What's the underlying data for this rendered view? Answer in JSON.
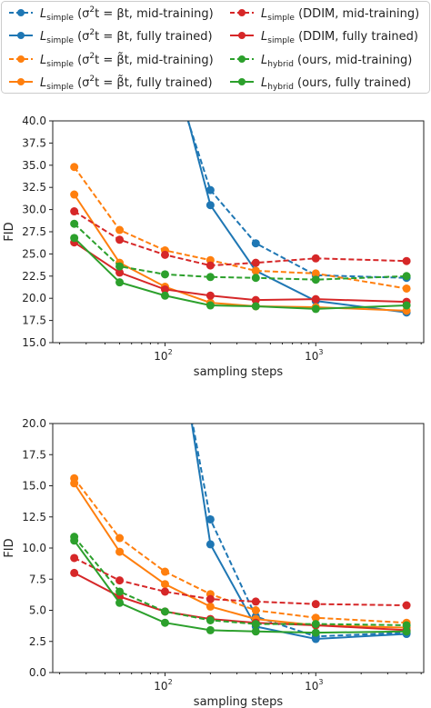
{
  "legend": {
    "placement": "top",
    "entries": [
      {
        "key": "lsimple_sigma_beta_mid",
        "main": "L",
        "sub": "simple",
        "tail": " (σ",
        "sup": "2",
        "rest": "t = βt, mid-training)",
        "color": "#1f77b4",
        "dashed": true
      },
      {
        "key": "lsimple_sigma_beta_full",
        "main": "L",
        "sub": "simple",
        "tail": " (σ",
        "sup": "2",
        "rest": "t = βt, fully trained)",
        "color": "#1f77b4",
        "dashed": false
      },
      {
        "key": "lsimple_sigma_betatilde_mid",
        "main": "L",
        "sub": "simple",
        "tail": " (σ",
        "sup": "2",
        "rest": "t = β̃t, mid-training)",
        "color": "#ff7f0e",
        "dashed": true
      },
      {
        "key": "lsimple_sigma_betatilde_full",
        "main": "L",
        "sub": "simple",
        "tail": " (σ",
        "sup": "2",
        "rest": "t = β̃t, fully trained)",
        "color": "#ff7f0e",
        "dashed": false
      },
      {
        "key": "lsimple_ddim_mid",
        "main": "L",
        "sub": "simple",
        "tail": " (DDIM, mid-training)",
        "sup": "",
        "rest": "",
        "color": "#d62728",
        "dashed": true
      },
      {
        "key": "lsimple_ddim_full",
        "main": "L",
        "sub": "simple",
        "tail": " (DDIM, fully trained)",
        "sup": "",
        "rest": "",
        "color": "#d62728",
        "dashed": false
      },
      {
        "key": "lhybrid_mid",
        "main": "L",
        "sub": "hybrid",
        "tail": " (ours, mid-training)",
        "sup": "",
        "rest": "",
        "color": "#2ca02c",
        "dashed": true
      },
      {
        "key": "lhybrid_full",
        "main": "L",
        "sub": "hybrid",
        "tail": " (ours, fully trained)",
        "sup": "",
        "rest": "",
        "color": "#2ca02c",
        "dashed": false
      }
    ]
  },
  "chart_data": [
    {
      "type": "line",
      "xscale": "log",
      "xlabel": "sampling steps",
      "ylabel": "FID",
      "xlim": [
        18,
        5200
      ],
      "ylim": [
        15,
        40
      ],
      "yticks": [
        15.0,
        17.5,
        20.0,
        22.5,
        25.0,
        27.5,
        30.0,
        32.5,
        35.0,
        37.5,
        40.0
      ],
      "ytick_labels": [
        "15.0",
        "17.5",
        "20.0",
        "22.5",
        "25.0",
        "27.5",
        "30.0",
        "32.5",
        "35.0",
        "37.5",
        "40.0"
      ],
      "xticks": [
        {
          "base": "10",
          "exp": "2",
          "value": 100
        },
        {
          "base": "10",
          "exp": "3",
          "value": 1000
        }
      ],
      "x": [
        25,
        50,
        100,
        200,
        400,
        1000,
        4000
      ],
      "series": [
        {
          "key": "lsimple_sigma_beta_mid",
          "values": [
            null,
            null,
            null,
            32.2,
            26.2,
            22.6,
            22.3
          ]
        },
        {
          "key": "lsimple_sigma_beta_full",
          "values": [
            null,
            null,
            null,
            30.5,
            23.1,
            19.7,
            18.4
          ]
        },
        {
          "key": "lsimple_sigma_betatilde_mid",
          "values": [
            34.8,
            27.7,
            25.4,
            24.3,
            23.1,
            22.8,
            21.1
          ]
        },
        {
          "key": "lsimple_sigma_betatilde_full",
          "values": [
            31.7,
            24.0,
            21.3,
            19.5,
            19.1,
            19.0,
            18.6
          ]
        },
        {
          "key": "lsimple_ddim_mid",
          "values": [
            29.8,
            26.6,
            24.9,
            23.7,
            24.0,
            24.5,
            24.2
          ]
        },
        {
          "key": "lsimple_ddim_full",
          "values": [
            26.3,
            22.9,
            21.0,
            20.3,
            19.8,
            19.9,
            19.6
          ]
        },
        {
          "key": "lhybrid_mid",
          "values": [
            28.4,
            23.6,
            22.7,
            22.4,
            22.3,
            22.1,
            22.5
          ]
        },
        {
          "key": "lhybrid_full",
          "values": [
            26.8,
            21.8,
            20.3,
            19.2,
            19.1,
            18.8,
            19.2
          ]
        }
      ],
      "offscale": {
        "lsimple_sigma_beta_mid": [
          [
            100,
            48
          ],
          [
            200,
            32.2
          ]
        ],
        "lsimple_sigma_beta_full": [
          [
            100,
            50
          ],
          [
            200,
            30.5
          ]
        ]
      }
    },
    {
      "type": "line",
      "xscale": "log",
      "xlabel": "sampling steps",
      "ylabel": "FID",
      "xlim": [
        18,
        5200
      ],
      "ylim": [
        0,
        20
      ],
      "yticks": [
        0.0,
        2.5,
        5.0,
        7.5,
        10.0,
        12.5,
        15.0,
        17.5,
        20.0
      ],
      "ytick_labels": [
        "0.0",
        "2.5",
        "5.0",
        "7.5",
        "10.0",
        "12.5",
        "15.0",
        "17.5",
        "20.0"
      ],
      "xticks": [
        {
          "base": "10",
          "exp": "2",
          "value": 100
        },
        {
          "base": "10",
          "exp": "3",
          "value": 1000
        }
      ],
      "x": [
        25,
        50,
        100,
        200,
        400,
        1000,
        4000
      ],
      "series": [
        {
          "key": "lsimple_sigma_beta_mid",
          "values": [
            null,
            null,
            null,
            12.3,
            4.5,
            2.9,
            3.2
          ]
        },
        {
          "key": "lsimple_sigma_beta_full",
          "values": [
            null,
            null,
            null,
            10.3,
            3.7,
            2.7,
            3.1
          ]
        },
        {
          "key": "lsimple_sigma_betatilde_mid",
          "values": [
            15.6,
            10.8,
            8.1,
            6.3,
            5.0,
            4.4,
            4.0
          ]
        },
        {
          "key": "lsimple_sigma_betatilde_full",
          "values": [
            15.2,
            9.7,
            7.1,
            5.3,
            4.3,
            3.8,
            3.6
          ]
        },
        {
          "key": "lsimple_ddim_mid",
          "values": [
            9.2,
            7.4,
            6.5,
            5.9,
            5.7,
            5.5,
            5.4
          ]
        },
        {
          "key": "lsimple_ddim_full",
          "values": [
            8.0,
            6.1,
            4.9,
            4.3,
            4.0,
            3.8,
            3.4
          ]
        },
        {
          "key": "lhybrid_mid",
          "values": [
            10.9,
            6.5,
            4.9,
            4.2,
            3.9,
            3.9,
            3.8
          ]
        },
        {
          "key": "lhybrid_full",
          "values": [
            10.6,
            5.6,
            4.0,
            3.4,
            3.3,
            3.2,
            3.3
          ]
        }
      ],
      "offscale": {
        "lsimple_sigma_beta_mid": [
          [
            100,
            32
          ],
          [
            200,
            12.3
          ]
        ],
        "lsimple_sigma_beta_full": [
          [
            100,
            34
          ],
          [
            200,
            10.3
          ]
        ]
      }
    }
  ]
}
